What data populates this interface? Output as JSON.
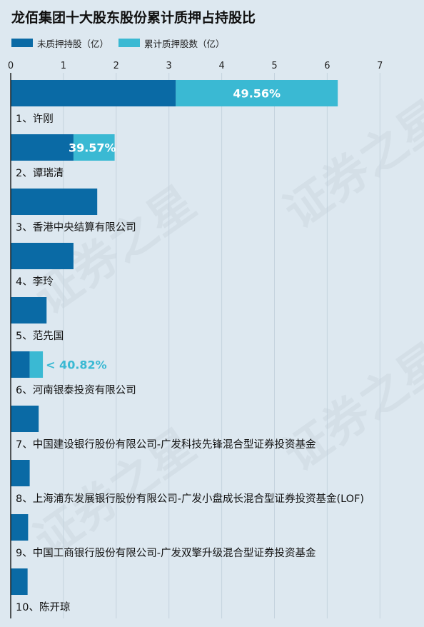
{
  "watermark": "证券之星",
  "colors": {
    "unpledged": "#0a6aa5",
    "pledged": "#3ab9d3",
    "axis": "#222222",
    "grid": "#c5d3de",
    "label_on_bar": "#ffffff",
    "label_outside": "#3ab9d3"
  },
  "chart_data": {
    "type": "bar",
    "orientation": "horizontal",
    "stacked": true,
    "title": "龙佰集团十大股东股份累计质押占持股比",
    "xlim": [
      0,
      7
    ],
    "x_ticks": [
      "0",
      "1",
      "2",
      "3",
      "4",
      "5",
      "6",
      "7"
    ],
    "grid": true,
    "legend_position": "top-left",
    "categories": [
      "1、许刚",
      "2、谭瑞清",
      "3、香港中央结算有限公司",
      "4、李玲",
      "5、范先国",
      "6、河南银泰投资有限公司",
      "7、中国建设银行股份有限公司-广发科技先锋混合型证券投资基金",
      "8、上海浦东发展银行股份有限公司-广发小盘成长混合型证券投资基金(LOF)",
      "9、中国工商银行股份有限公司-广发双擎升级混合型证券投资基金",
      "10、陈开琼"
    ],
    "series": [
      {
        "name": "未质押持股（亿）",
        "values": [
          3.13,
          1.19,
          1.64,
          1.19,
          0.68,
          0.36,
          0.53,
          0.36,
          0.33,
          0.32
        ]
      },
      {
        "name": "累计质押股数（亿）",
        "values": [
          3.07,
          0.78,
          0,
          0,
          0,
          0.25,
          0,
          0,
          0,
          0
        ]
      }
    ],
    "data_labels": [
      {
        "index": 0,
        "text": "49.56%",
        "placement": "inside"
      },
      {
        "index": 1,
        "text": "39.57%",
        "placement": "inside"
      },
      {
        "index": 5,
        "text": "< 40.82%",
        "placement": "outside"
      }
    ]
  }
}
